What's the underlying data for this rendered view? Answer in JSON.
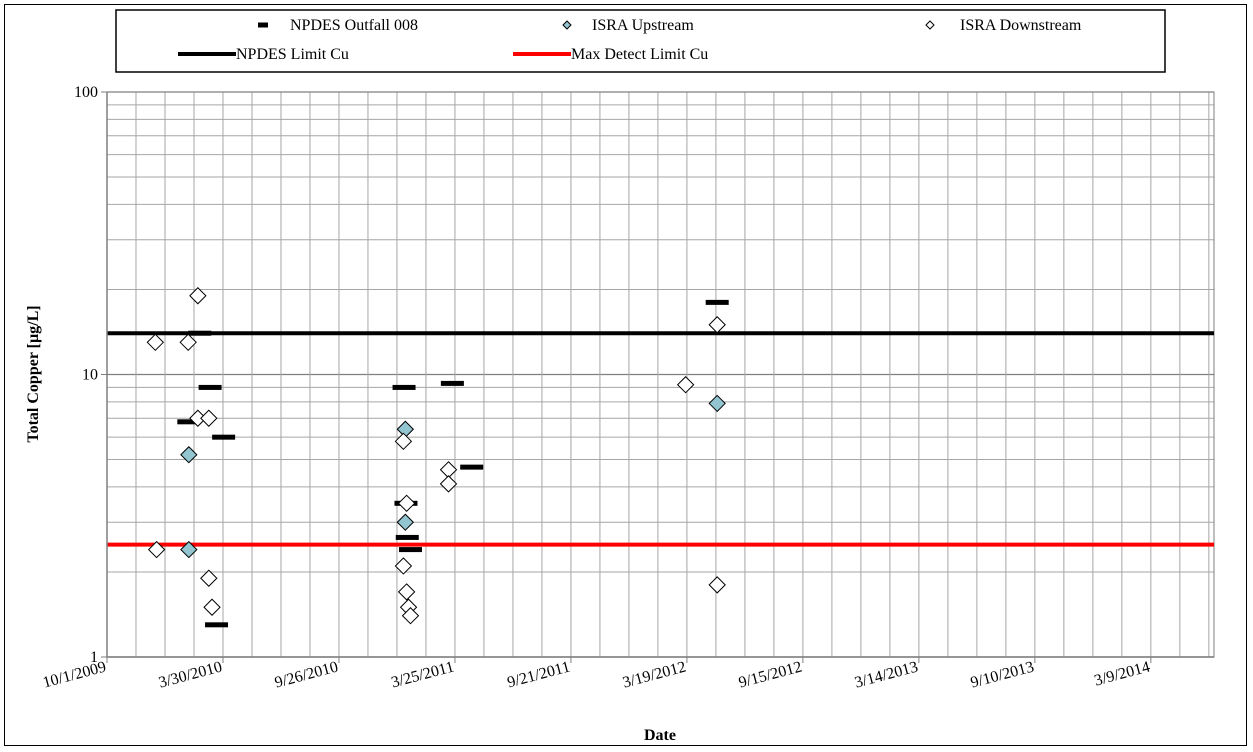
{
  "chart_data": {
    "type": "scatter",
    "xlabel": "Date",
    "ylabel": "Total Copper [µg/L]",
    "yscale": "log",
    "ylim": [
      1,
      100
    ],
    "xlim": [
      "2009-10-01",
      "2014-06-15"
    ],
    "x_ticks": [
      "10/1/2009",
      "3/30/2010",
      "9/26/2010",
      "3/25/2011",
      "9/21/2011",
      "3/19/2012",
      "9/15/2012",
      "3/14/2013",
      "9/10/2013",
      "3/9/2014"
    ],
    "y_ticks": [
      "1",
      "10",
      "100"
    ],
    "grid": true,
    "legend_position": "top",
    "legend": [
      {
        "label": "NPDES Outfall 008",
        "marker": "dash"
      },
      {
        "label": "ISRA Upstream",
        "marker": "diamond-filled"
      },
      {
        "label": "ISRA Downstream",
        "marker": "diamond-open"
      },
      {
        "label": "NPDES Limit Cu",
        "marker": "line-black"
      },
      {
        "label": "Max Detect Limit Cu",
        "marker": "line-red"
      }
    ],
    "series": [
      {
        "name": "NPDES Outfall 008",
        "marker": "dash",
        "color": "#000000",
        "points": [
          {
            "x": "2010-02-05",
            "y": 6.8
          },
          {
            "x": "2010-02-22",
            "y": 14.0
          },
          {
            "x": "2010-03-10",
            "y": 9.0
          },
          {
            "x": "2010-03-20",
            "y": 1.3
          },
          {
            "x": "2010-03-31",
            "y": 6.0
          },
          {
            "x": "2011-01-05",
            "y": 9.0
          },
          {
            "x": "2011-01-08",
            "y": 3.5
          },
          {
            "x": "2011-01-10",
            "y": 2.65
          },
          {
            "x": "2011-01-15",
            "y": 2.4
          },
          {
            "x": "2011-03-21",
            "y": 9.3
          },
          {
            "x": "2011-04-20",
            "y": 4.7
          },
          {
            "x": "2012-05-05",
            "y": 18.0
          }
        ]
      },
      {
        "name": "ISRA Upstream",
        "marker": "diamond-filled",
        "color": "#92C5D0",
        "points": [
          {
            "x": "2010-02-05",
            "y": 5.2
          },
          {
            "x": "2010-02-05",
            "y": 2.4
          },
          {
            "x": "2011-01-07",
            "y": 6.4
          },
          {
            "x": "2011-01-07",
            "y": 3.0
          },
          {
            "x": "2012-05-05",
            "y": 7.9
          }
        ]
      },
      {
        "name": "ISRA Downstream",
        "marker": "diamond-open",
        "color": "#ffffff",
        "points": [
          {
            "x": "2009-12-15",
            "y": 13.0
          },
          {
            "x": "2009-12-17",
            "y": 2.4
          },
          {
            "x": "2010-02-04",
            "y": 13.0
          },
          {
            "x": "2010-02-19",
            "y": 19.0
          },
          {
            "x": "2010-02-19",
            "y": 7.0
          },
          {
            "x": "2010-03-08",
            "y": 7.0
          },
          {
            "x": "2010-03-08",
            "y": 1.9
          },
          {
            "x": "2010-03-13",
            "y": 1.5
          },
          {
            "x": "2011-01-04",
            "y": 5.8
          },
          {
            "x": "2011-01-04",
            "y": 2.1
          },
          {
            "x": "2011-01-09",
            "y": 3.5
          },
          {
            "x": "2011-01-09",
            "y": 1.7
          },
          {
            "x": "2011-01-12",
            "y": 1.5
          },
          {
            "x": "2011-01-15",
            "y": 1.4
          },
          {
            "x": "2011-03-15",
            "y": 4.6
          },
          {
            "x": "2011-03-15",
            "y": 4.1
          },
          {
            "x": "2012-03-17",
            "y": 9.2
          },
          {
            "x": "2012-05-05",
            "y": 15.0
          },
          {
            "x": "2012-05-05",
            "y": 1.8
          }
        ]
      }
    ],
    "reference_lines": [
      {
        "name": "NPDES Limit Cu",
        "y": 14.0,
        "color": "#000000"
      },
      {
        "name": "Max Detect Limit Cu",
        "y": 2.5,
        "color": "#ff0000"
      }
    ]
  }
}
